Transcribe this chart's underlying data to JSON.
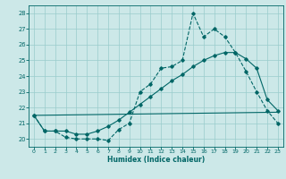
{
  "xlabel": "Humidex (Indice chaleur)",
  "background_color": "#cce8e8",
  "grid_color": "#99cccc",
  "line_color": "#006666",
  "xlim": [
    -0.5,
    23.5
  ],
  "ylim": [
    19.5,
    28.5
  ],
  "yticks": [
    20,
    21,
    22,
    23,
    24,
    25,
    26,
    27,
    28
  ],
  "xticks": [
    0,
    1,
    2,
    3,
    4,
    5,
    6,
    7,
    8,
    9,
    10,
    11,
    12,
    13,
    14,
    15,
    16,
    17,
    18,
    19,
    20,
    21,
    22,
    23
  ],
  "series1_x": [
    0,
    1,
    2,
    3,
    4,
    5,
    6,
    7,
    8,
    9,
    10,
    11,
    12,
    13,
    14,
    15,
    16,
    17,
    18,
    19,
    20,
    21,
    22,
    23
  ],
  "series1_y": [
    21.5,
    20.5,
    20.5,
    20.1,
    20.0,
    20.0,
    20.0,
    19.9,
    20.6,
    21.0,
    23.0,
    23.5,
    24.5,
    24.6,
    25.0,
    28.0,
    26.5,
    27.0,
    26.5,
    25.5,
    24.3,
    23.0,
    21.8,
    21.0
  ],
  "series2_x": [
    0,
    1,
    2,
    3,
    4,
    5,
    6,
    7,
    8,
    9,
    10,
    11,
    12,
    13,
    14,
    15,
    16,
    17,
    18,
    19,
    20,
    21,
    22,
    23
  ],
  "series2_y": [
    21.5,
    20.5,
    20.5,
    20.5,
    20.3,
    20.3,
    20.5,
    20.8,
    21.2,
    21.7,
    22.2,
    22.7,
    23.2,
    23.7,
    24.1,
    24.6,
    25.0,
    25.3,
    25.5,
    25.5,
    25.1,
    24.5,
    22.5,
    21.8
  ],
  "series3_x": [
    0,
    23
  ],
  "series3_y": [
    21.5,
    21.7
  ]
}
